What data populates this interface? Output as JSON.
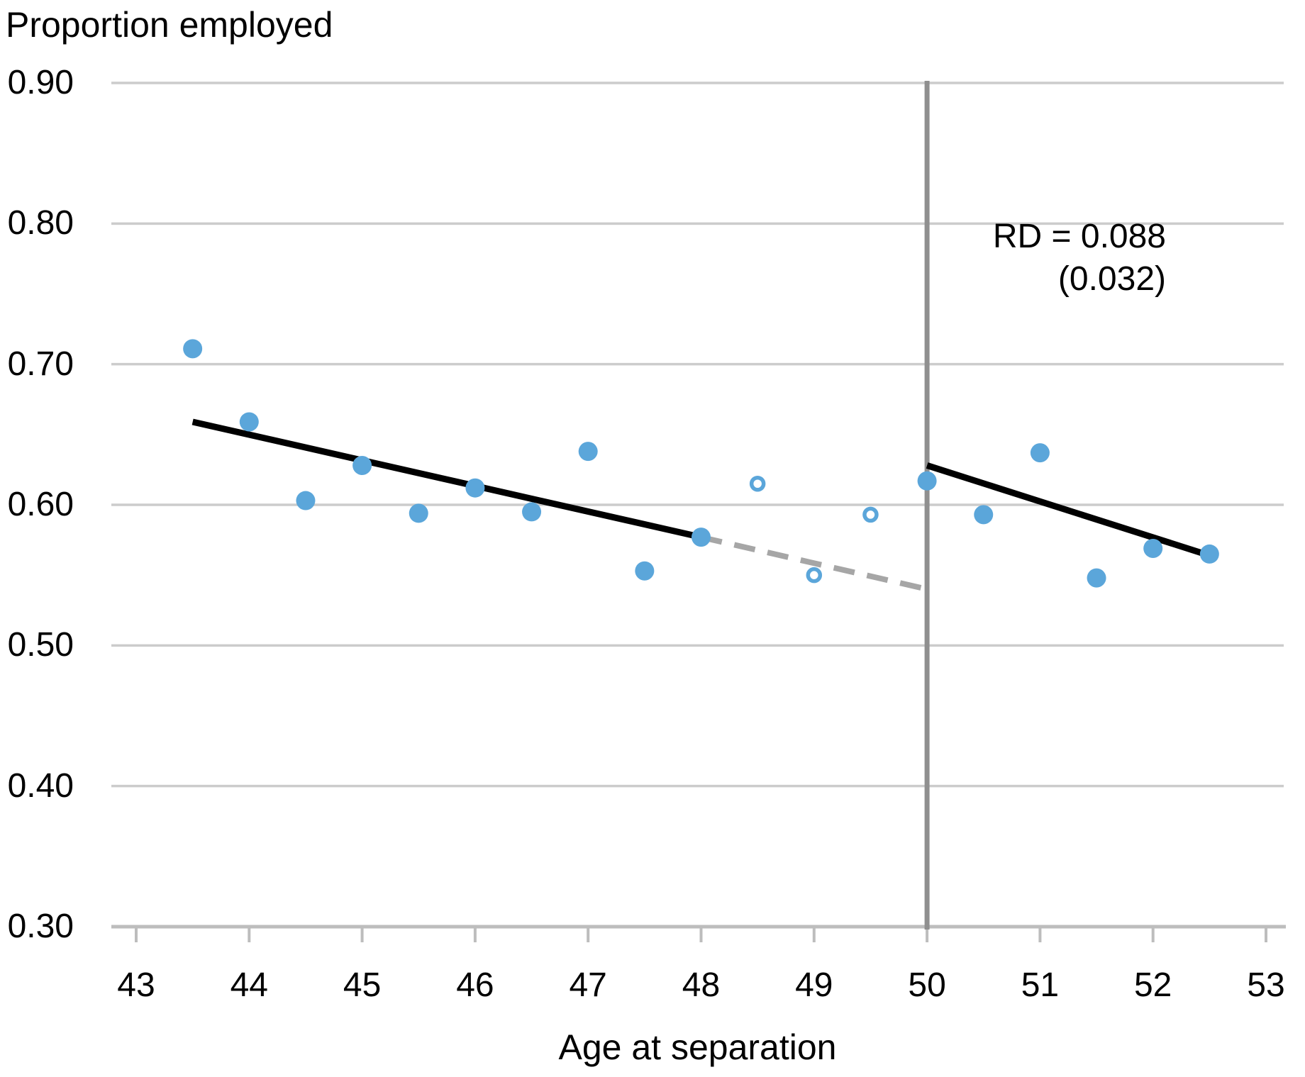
{
  "header": {
    "title": "Proportion employed"
  },
  "chart_data": {
    "type": "scatter",
    "title": "Proportion employed",
    "xlabel": "Age at separation",
    "ylabel": "Proportion employed",
    "xlim": [
      43,
      53
    ],
    "ylim": [
      0.3,
      0.9
    ],
    "grid": true,
    "x_ticks": [
      43,
      44,
      45,
      46,
      47,
      48,
      49,
      50,
      51,
      52,
      53
    ],
    "y_ticks": [
      {
        "value": 0.3,
        "label": "0.30"
      },
      {
        "value": 0.4,
        "label": "0.40"
      },
      {
        "value": 0.5,
        "label": "0.50"
      },
      {
        "value": 0.6,
        "label": "0.60"
      },
      {
        "value": 0.7,
        "label": "0.70"
      },
      {
        "value": 0.8,
        "label": "0.80"
      },
      {
        "value": 0.9,
        "label": "0.90"
      }
    ],
    "cutoff_x": 50,
    "annotation": {
      "line1": "RD = 0.088",
      "line2": "(0.032)"
    },
    "points": [
      {
        "x": 43.5,
        "y": 0.711,
        "style": "filled"
      },
      {
        "x": 44.0,
        "y": 0.659,
        "style": "filled"
      },
      {
        "x": 44.5,
        "y": 0.603,
        "style": "filled"
      },
      {
        "x": 45.0,
        "y": 0.628,
        "style": "filled"
      },
      {
        "x": 45.5,
        "y": 0.594,
        "style": "filled"
      },
      {
        "x": 46.0,
        "y": 0.612,
        "style": "filled"
      },
      {
        "x": 46.5,
        "y": 0.595,
        "style": "filled"
      },
      {
        "x": 47.0,
        "y": 0.638,
        "style": "filled"
      },
      {
        "x": 47.5,
        "y": 0.553,
        "style": "filled"
      },
      {
        "x": 48.0,
        "y": 0.577,
        "style": "filled"
      },
      {
        "x": 48.5,
        "y": 0.615,
        "style": "open"
      },
      {
        "x": 49.0,
        "y": 0.55,
        "style": "open"
      },
      {
        "x": 49.5,
        "y": 0.593,
        "style": "open"
      },
      {
        "x": 50.0,
        "y": 0.617,
        "style": "filled"
      },
      {
        "x": 50.5,
        "y": 0.593,
        "style": "filled"
      },
      {
        "x": 51.0,
        "y": 0.637,
        "style": "filled"
      },
      {
        "x": 51.5,
        "y": 0.548,
        "style": "filled"
      },
      {
        "x": 52.0,
        "y": 0.569,
        "style": "filled"
      },
      {
        "x": 52.5,
        "y": 0.565,
        "style": "filled"
      }
    ],
    "fit_line_left": {
      "x": [
        43.5,
        48.0
      ],
      "y": [
        0.659,
        0.577
      ]
    },
    "extrapolation_line": {
      "x": [
        48.0,
        50.0
      ],
      "y": [
        0.577,
        0.54
      ]
    },
    "fit_line_right": {
      "x": [
        50.0,
        52.5
      ],
      "y": [
        0.628,
        0.564
      ]
    },
    "colors": {
      "point_blue": "#5ba6da",
      "trend_black": "#000000",
      "extrapolation_gray": "#a6a6a6",
      "cutoff_gray": "#8f8f8f",
      "gridline_gray": "#cccccc",
      "axis_gray": "#bdbdbd",
      "text_black": "#000000",
      "background": "#ffffff"
    }
  }
}
